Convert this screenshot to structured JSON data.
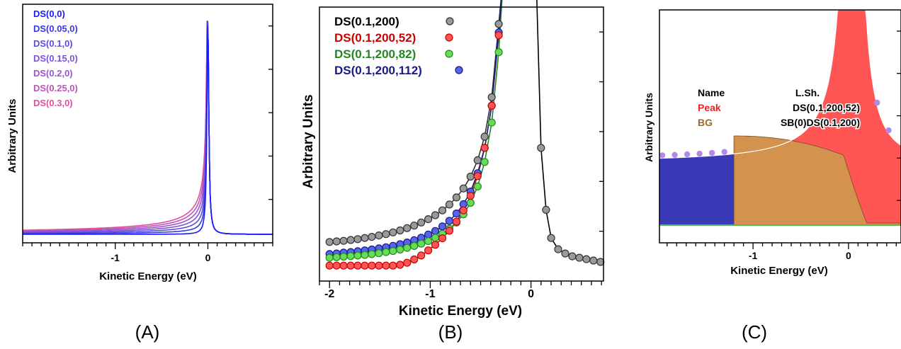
{
  "chart_data": [
    {
      "panel_label": "(A)",
      "type": "line",
      "xlabel": "Kinetic Energy (eV)",
      "ylabel": "Arbitrary Units",
      "xlim": [
        -2.0,
        0.7
      ],
      "xticks": [
        -1,
        0
      ],
      "log_y": false,
      "legend_position": "top-left",
      "series": [
        {
          "name": "DS(0,0)",
          "alpha": 0.0,
          "color": "#1a1aff"
        },
        {
          "name": "DS(0.05,0)",
          "alpha": 0.05,
          "color": "#3a3ae0"
        },
        {
          "name": "DS(0.1,0)",
          "alpha": 0.1,
          "color": "#5a4ee0"
        },
        {
          "name": "DS(0.15,0)",
          "alpha": 0.15,
          "color": "#7a55d8"
        },
        {
          "name": "DS(0.2,0)",
          "alpha": 0.2,
          "color": "#9a55cc"
        },
        {
          "name": "DS(0.25,0)",
          "alpha": 0.25,
          "color": "#bb55bb"
        },
        {
          "name": "DS(0.3,0)",
          "alpha": 0.3,
          "color": "#e0509a"
        }
      ]
    },
    {
      "panel_label": "(B)",
      "type": "scatter",
      "xlabel": "Kinetic Energy (eV)",
      "ylabel": "Arbitrary Units",
      "xlim": [
        -2.1,
        0.72
      ],
      "xticks": [
        -2,
        -1,
        0
      ],
      "legend_position": "top-left",
      "series": [
        {
          "name": "DS(0.1,200)",
          "fill": "#9a9a9a",
          "stroke": "#333333",
          "x": [
            -2.0,
            -1.93,
            -1.86,
            -1.79,
            -1.72,
            -1.65,
            -1.58,
            -1.51,
            -1.44,
            -1.37,
            -1.3,
            -1.23,
            -1.16,
            -1.09,
            -1.02,
            -0.95,
            -0.88,
            -0.81,
            -0.74,
            -0.67,
            -0.6,
            -0.53,
            -0.46,
            -0.39,
            -0.32,
            0.1,
            0.15,
            0.2,
            0.27,
            0.34,
            0.41,
            0.48,
            0.55,
            0.62,
            0.69
          ],
          "y": [
            0.086,
            0.088,
            0.09,
            0.093,
            0.096,
            0.1,
            0.104,
            0.109,
            0.114,
            0.12,
            0.127,
            0.135,
            0.144,
            0.155,
            0.167,
            0.181,
            0.198,
            0.219,
            0.244,
            0.276,
            0.318,
            0.376,
            0.46,
            0.6,
            0.86,
            0.42,
            0.2,
            0.1,
            0.06,
            0.045,
            0.035,
            0.03,
            0.025,
            0.02,
            0.015
          ]
        },
        {
          "name": "DS(0.1,200,52)",
          "fill": "#ff5555",
          "stroke": "#cc0000",
          "x": [
            -2.0,
            -1.93,
            -1.86,
            -1.79,
            -1.72,
            -1.65,
            -1.58,
            -1.51,
            -1.44,
            -1.37,
            -1.3,
            -1.23,
            -1.16,
            -1.09,
            -1.02,
            -0.95,
            -0.88,
            -0.81,
            -0.74,
            -0.67,
            -0.6,
            -0.53,
            -0.46,
            -0.39,
            -0.32
          ],
          "y": [
            0.002,
            0.002,
            0.002,
            0.002,
            0.002,
            0.002,
            0.002,
            0.002,
            0.002,
            0.002,
            0.005,
            0.012,
            0.024,
            0.038,
            0.056,
            0.076,
            0.099,
            0.126,
            0.158,
            0.198,
            0.25,
            0.32,
            0.42,
            0.57,
            0.82
          ]
        },
        {
          "name": "DS(0.1,200,82)",
          "fill": "#66dd55",
          "stroke": "#228822",
          "x": [
            -2.0,
            -1.93,
            -1.86,
            -1.79,
            -1.72,
            -1.65,
            -1.58,
            -1.51,
            -1.44,
            -1.37,
            -1.3,
            -1.23,
            -1.16,
            -1.09,
            -1.02,
            -0.95,
            -0.88,
            -0.81,
            -0.74,
            -0.67,
            -0.6,
            -0.53,
            -0.46,
            -0.39,
            -0.32
          ],
          "y": [
            0.03,
            0.032,
            0.034,
            0.036,
            0.038,
            0.04,
            0.043,
            0.046,
            0.05,
            0.054,
            0.059,
            0.065,
            0.072,
            0.08,
            0.089,
            0.101,
            0.115,
            0.133,
            0.155,
            0.184,
            0.225,
            0.283,
            0.37,
            0.51,
            0.76
          ]
        },
        {
          "name": "DS(0.1,200,112)",
          "fill": "#5566ee",
          "stroke": "#1a1a88",
          "x": [
            -2.0,
            -1.93,
            -1.86,
            -1.79,
            -1.72,
            -1.65,
            -1.58,
            -1.51,
            -1.44,
            -1.37,
            -1.3,
            -1.23,
            -1.16,
            -1.09,
            -1.02,
            -0.95,
            -0.88,
            -0.81,
            -0.74,
            -0.67,
            -0.6,
            -0.53,
            -0.46,
            -0.39,
            -0.32
          ],
          "y": [
            0.043,
            0.045,
            0.048,
            0.05,
            0.053,
            0.056,
            0.059,
            0.063,
            0.067,
            0.072,
            0.078,
            0.084,
            0.092,
            0.101,
            0.112,
            0.125,
            0.141,
            0.161,
            0.187,
            0.22,
            0.265,
            0.33,
            0.42,
            0.57,
            0.83
          ]
        }
      ]
    },
    {
      "panel_label": "(C)",
      "type": "area",
      "xlabel": "Kinetic Energy (eV)",
      "ylabel": "Arbitrary Units",
      "xlim": [
        -1.98,
        0.55
      ],
      "xticks": [
        -1,
        0
      ],
      "table": {
        "headers": [
          "Name",
          "L.Sh."
        ],
        "rows": [
          {
            "name": "Peak",
            "lineshape": "DS(0.1,200,52)",
            "name_color": "#ee2222"
          },
          {
            "name": "BG",
            "lineshape": "SB(0)DS(0.1,200)",
            "name_color": "#a0662a"
          }
        ]
      },
      "regions": [
        {
          "name": "left-region",
          "color": "#3a3ab8"
        },
        {
          "name": "Peak",
          "color": "#ff5555"
        },
        {
          "name": "BG",
          "color": "#d4924f"
        }
      ]
    }
  ]
}
